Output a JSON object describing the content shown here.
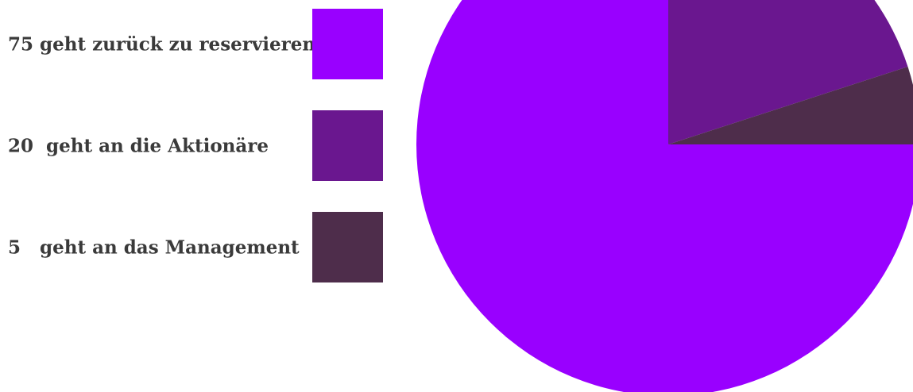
{
  "chart_data": {
    "type": "pie",
    "title": "",
    "categories": [
      "75 geht zurück zu reservieren",
      "20  geht an die Aktionäre",
      "5   geht an das Management"
    ],
    "values": [
      75,
      20,
      5
    ],
    "colors": [
      "#9900ff",
      "#6a178f",
      "#4e2d4b"
    ],
    "legend_position": "left",
    "start_angle_deg": 90,
    "direction": "clockwise-from-right"
  }
}
